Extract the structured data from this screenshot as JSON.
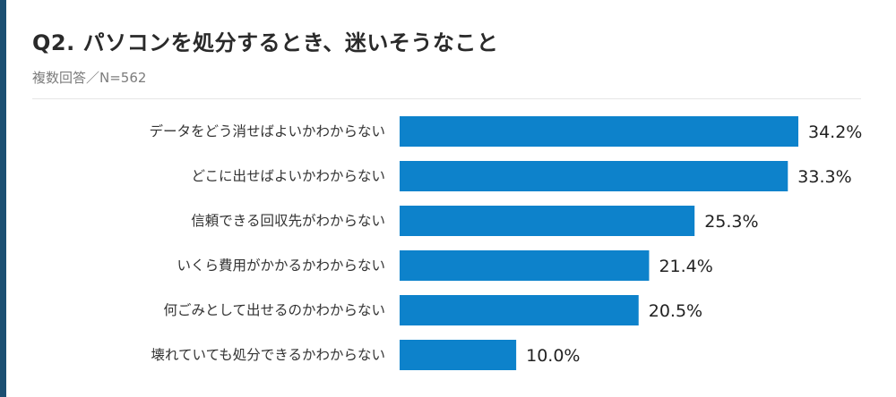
{
  "title": "Q2. パソコンを処分するとき、迷いそうなこと",
  "subtitle": "複数回答／N=562",
  "colors": {
    "bar": "#0d82cb",
    "accent_stripe": "#1c4f72"
  },
  "chart_data": {
    "type": "bar",
    "orientation": "horizontal",
    "categories": [
      "データをどう消せばよいかわからない",
      "どこに出せばよいかわからない",
      "信頼できる回収先がわからない",
      "いくら費用がかかるかわからない",
      "何ごみとして出せるのかわからない",
      "壊れていても処分できるかわからない"
    ],
    "values": [
      34.2,
      33.3,
      25.3,
      21.4,
      20.5,
      10.0
    ],
    "value_labels": [
      "34.2%",
      "33.3%",
      "25.3%",
      "21.4%",
      "20.5%",
      "10.0%"
    ],
    "unit": "%",
    "xlim": [
      0,
      34.2
    ],
    "grid": false,
    "legend": "none"
  }
}
